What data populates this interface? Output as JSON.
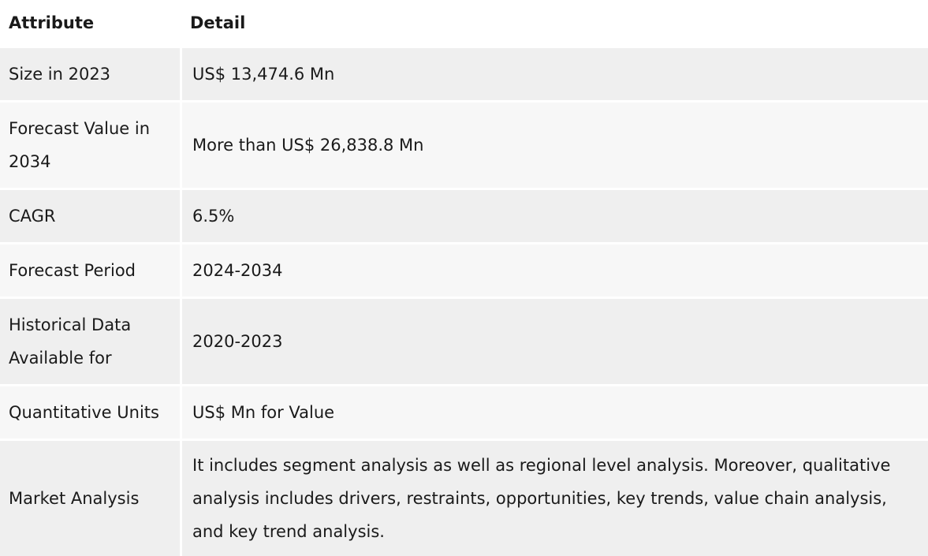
{
  "table": {
    "headers": {
      "attribute": "Attribute",
      "detail": "Detail"
    },
    "rows": [
      {
        "attribute": "Size in 2023",
        "detail": "US$ 13,474.6 Mn"
      },
      {
        "attribute": "Forecast Value in 2034",
        "detail": "More than US$ 26,838.8 Mn"
      },
      {
        "attribute": "CAGR",
        "detail": "6.5%"
      },
      {
        "attribute": "Forecast Period",
        "detail": "2024-2034"
      },
      {
        "attribute": "Historical Data Available for",
        "detail": "2020-2023"
      },
      {
        "attribute": "Quantitative Units",
        "detail": "US$ Mn for Value"
      },
      {
        "attribute": "Market Analysis",
        "detail": "It includes segment analysis as well as regional level analysis. Moreover, qualitative analysis includes drivers, restraints, opportunities, key trends, value chain analysis, and key trend analysis."
      }
    ]
  }
}
